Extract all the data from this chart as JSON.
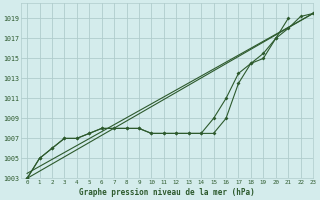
{
  "background_color": "#d4ecec",
  "grid_color": "#b0cccc",
  "line_color": "#2d5a2d",
  "title": "Graphe pression niveau de la mer (hPa)",
  "xlim": [
    -0.5,
    23
  ],
  "ylim": [
    1003,
    1020.5
  ],
  "yticks": [
    1003,
    1005,
    1007,
    1009,
    1011,
    1013,
    1015,
    1017,
    1019
  ],
  "xticks": [
    0,
    1,
    2,
    3,
    4,
    5,
    6,
    7,
    8,
    9,
    10,
    11,
    12,
    13,
    14,
    15,
    16,
    17,
    18,
    19,
    20,
    21,
    22,
    23
  ],
  "line_straight1": {
    "x": [
      0,
      23
    ],
    "y": [
      1003,
      1019.5
    ]
  },
  "line_straight2": {
    "x": [
      0,
      23
    ],
    "y": [
      1003.5,
      1019.5
    ]
  },
  "line_curved1_x": [
    0,
    1,
    2,
    3,
    4,
    5,
    6,
    7,
    8,
    9,
    10,
    11,
    12,
    13,
    14,
    15,
    16,
    17,
    18,
    19,
    20,
    21,
    22,
    23
  ],
  "line_curved1_y": [
    1003,
    1005,
    1006,
    1007,
    1007,
    1007.5,
    1008,
    1008,
    1008,
    1008,
    1007.5,
    1007.5,
    1007.5,
    1007.5,
    1007.5,
    1009,
    1011,
    1013.5,
    1014.5,
    1015,
    1017,
    1018,
    1019.2,
    1019.5
  ],
  "line_curved2_x": [
    0,
    1,
    2,
    3,
    4,
    5,
    6,
    7,
    8,
    9,
    10,
    11,
    12,
    13,
    14,
    15,
    16,
    17,
    18,
    19,
    20,
    21
  ],
  "line_curved2_y": [
    1003,
    1005,
    1006,
    1007,
    1007,
    1007.5,
    1008,
    1008,
    1008,
    1008,
    1007.5,
    1007.5,
    1007.5,
    1007.5,
    1007.5,
    1007.5,
    1009,
    1012.5,
    1014.5,
    1015.5,
    1017,
    1019
  ]
}
